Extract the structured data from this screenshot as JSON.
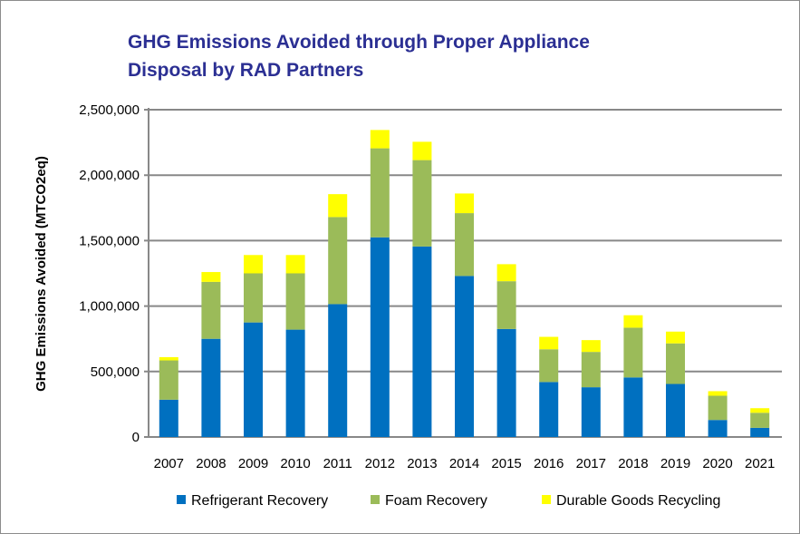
{
  "chart_data": {
    "type": "bar",
    "stacked": true,
    "title_lines": [
      "GHG Emissions Avoided through Proper Appliance",
      "Disposal by RAD Partners"
    ],
    "xlabel": "",
    "ylabel": "GHG Emissions Avoided (MTCO2eq)",
    "ylim": [
      0,
      2500000
    ],
    "yticks": [
      0,
      500000,
      1000000,
      1500000,
      2000000,
      2500000
    ],
    "ytick_labels": [
      "0",
      "500,000",
      "1,000,000",
      "1,500,000",
      "2,000,000",
      "2,500,000"
    ],
    "grid": true,
    "legend_position": "bottom",
    "categories": [
      "2007",
      "2008",
      "2009",
      "2010",
      "2011",
      "2012",
      "2013",
      "2014",
      "2015",
      "2016",
      "2017",
      "2018",
      "2019",
      "2020",
      "2021"
    ],
    "series": [
      {
        "name": "Refrigerant Recovery",
        "color": "#0070c0",
        "values": [
          285000,
          750000,
          875000,
          820000,
          1015000,
          1525000,
          1455000,
          1230000,
          825000,
          420000,
          380000,
          455000,
          405000,
          130000,
          70000
        ]
      },
      {
        "name": "Foam Recovery",
        "color": "#9bbb59",
        "values": [
          300000,
          435000,
          375000,
          430000,
          665000,
          680000,
          660000,
          480000,
          365000,
          250000,
          270000,
          380000,
          310000,
          185000,
          115000
        ]
      },
      {
        "name": "Durable Goods Recycling",
        "color": "#ffff00",
        "values": [
          25000,
          75000,
          140000,
          140000,
          175000,
          140000,
          140000,
          150000,
          130000,
          95000,
          90000,
          95000,
          90000,
          35000,
          35000
        ]
      }
    ]
  }
}
